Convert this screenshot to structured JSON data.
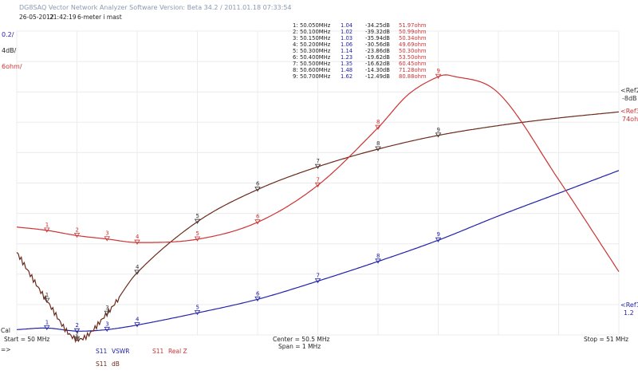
{
  "chart_data": {
    "type": "line",
    "title": "DG8SAQ Vector Network Analyzer Software   Version:  Beta 34.2 / 2011.01.18 07:33:54",
    "subtitle_date": "26-05-2012",
    "subtitle_time": "21:42:19",
    "subtitle_note": "6-meter i mast",
    "left_scales": [
      {
        "label": "0.2/",
        "color": "#2222aa"
      },
      {
        "label": "4dB/",
        "color": "#222222"
      },
      {
        "label": "6ohm/",
        "color": "#cc3333"
      }
    ],
    "references": [
      {
        "label": "<Ref2",
        "value": "-8dB",
        "color": "#333333"
      },
      {
        "label": "<Ref3",
        "value": "74ohm",
        "color": "#cc3333"
      },
      {
        "label": "<Ref1",
        "value": "1.2",
        "color": "#2222aa"
      }
    ],
    "cal_label": "Cal",
    "arrow_label": "=>",
    "start_label": "Start = 50 MHz",
    "center_label": "Center = 50.5 MHz",
    "span_label": "Span = 1 MHz",
    "stop_label": "Stop = 51 MHz",
    "xlim": [
      50.0,
      51.0
    ],
    "grid": true,
    "legend": [
      {
        "prefix": "S11",
        "label": "VSWR",
        "color": "#2222aa"
      },
      {
        "prefix": "S11",
        "label": "Real Z",
        "color": "#cc3333"
      },
      {
        "prefix": "S11",
        "label": "dB",
        "color": "#6b2a1a"
      }
    ],
    "markers": [
      {
        "n": "1",
        "freq": "50.050MHz",
        "vswr": "1.04",
        "db": "-34.25dB",
        "ohm": "51.97ohm"
      },
      {
        "n": "2",
        "freq": "50.100MHz",
        "vswr": "1.02",
        "db": "-39.32dB",
        "ohm": "50.99ohm"
      },
      {
        "n": "3",
        "freq": "50.150MHz",
        "vswr": "1.03",
        "db": "-35.94dB",
        "ohm": "50.34ohm"
      },
      {
        "n": "4",
        "freq": "50.200MHz",
        "vswr": "1.06",
        "db": "-30.56dB",
        "ohm": "49.69ohm"
      },
      {
        "n": "5",
        "freq": "50.300MHz",
        "vswr": "1.14",
        "db": "-23.86dB",
        "ohm": "50.30ohm"
      },
      {
        "n": "6",
        "freq": "50.400MHz",
        "vswr": "1.23",
        "db": "-19.62dB",
        "ohm": "53.50ohm"
      },
      {
        "n": "7",
        "freq": "50.500MHz",
        "vswr": "1.35",
        "db": "-16.62dB",
        "ohm": "60.45ohm"
      },
      {
        "n": "8",
        "freq": "50.600MHz",
        "vswr": "1.48",
        "db": "-14.30dB",
        "ohm": "71.28ohm"
      },
      {
        "n": "9",
        "freq": "50.700MHz",
        "vswr": "1.62",
        "db": "-12.49dB",
        "ohm": "80.88ohm"
      }
    ],
    "series": [
      {
        "name": "VSWR",
        "color": "#2222aa",
        "x": [
          50.0,
          50.05,
          50.1,
          50.15,
          50.2,
          50.3,
          50.4,
          50.5,
          50.6,
          50.7,
          50.8,
          50.9,
          51.0
        ],
        "y": [
          1.03,
          1.04,
          1.02,
          1.03,
          1.06,
          1.14,
          1.23,
          1.35,
          1.48,
          1.62,
          1.78,
          1.93,
          2.08
        ]
      },
      {
        "name": "dB",
        "color": "#6b2a1a",
        "x": [
          50.0,
          50.05,
          50.1,
          50.15,
          50.2,
          50.3,
          50.4,
          50.5,
          50.6,
          50.7,
          50.8,
          50.9,
          51.0
        ],
        "y": [
          -27.9,
          -34.25,
          -39.32,
          -35.94,
          -30.56,
          -23.86,
          -19.62,
          -16.62,
          -14.3,
          -12.49,
          -11.2,
          -10.2,
          -9.4
        ]
      },
      {
        "name": "Real Z",
        "color": "#cc3333",
        "x": [
          50.0,
          50.05,
          50.1,
          50.15,
          50.2,
          50.3,
          50.4,
          50.5,
          50.6,
          50.65,
          50.7,
          50.72,
          50.8,
          50.9,
          51.0
        ],
        "y": [
          52.6,
          51.97,
          50.99,
          50.34,
          49.69,
          50.3,
          53.5,
          60.45,
          71.28,
          77.5,
          80.88,
          81.1,
          77.8,
          61.5,
          44.2
        ]
      }
    ]
  }
}
